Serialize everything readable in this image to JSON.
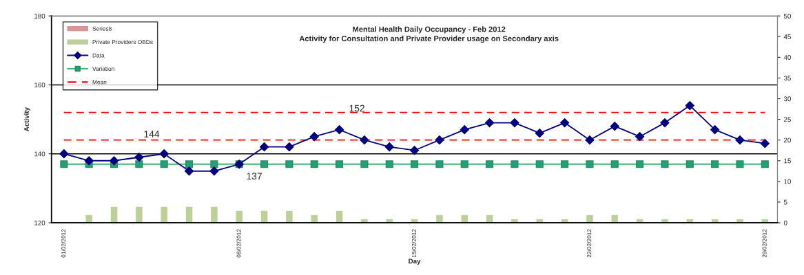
{
  "chart_data": {
    "type": "line",
    "title": "Mental Health Daily Occupancy - Feb 2012",
    "subtitle": "Activity for Consultation and Private Provider usage on Secondary axis",
    "xlabel": "Day",
    "ylabel": "Activity",
    "categories": [
      "01/02/2012",
      null,
      null,
      null,
      null,
      null,
      null,
      "08/02/2012",
      null,
      null,
      null,
      null,
      null,
      null,
      "15/02/2012",
      null,
      null,
      null,
      null,
      null,
      null,
      "22/02/2012",
      null,
      null,
      null,
      null,
      null,
      null,
      "29/02/2012"
    ],
    "series": [
      {
        "name": "Series8",
        "type": "bar",
        "axis": "y2",
        "color": "#d99594",
        "values": [
          null,
          null,
          null,
          null,
          null,
          null,
          null,
          null,
          null,
          null,
          null,
          null,
          null,
          null,
          null,
          null,
          null,
          null,
          null,
          null,
          null,
          null,
          null,
          null,
          null,
          null,
          null,
          null,
          null
        ]
      },
      {
        "name": "Private Providers OBDs",
        "type": "bar",
        "axis": "y2",
        "color": "#bcd098",
        "values": [
          null,
          2,
          4,
          4,
          4,
          4,
          4,
          3,
          3,
          3,
          2,
          3,
          1,
          1,
          1,
          2,
          2,
          2,
          1,
          1,
          1,
          2,
          2,
          1,
          1,
          1,
          1,
          1,
          1
        ]
      },
      {
        "name": "Data",
        "color": "#000080",
        "marker": "diamond",
        "values": [
          140,
          138,
          138,
          139,
          140,
          135,
          135,
          137,
          142,
          142,
          145,
          147,
          144,
          142,
          141,
          144,
          147,
          149,
          149,
          146,
          149,
          144,
          148,
          145,
          149,
          154,
          147,
          144,
          143
        ]
      },
      {
        "name": "Variation",
        "color": "#3cb371",
        "marker": "square",
        "values": [
          137,
          137,
          137,
          137,
          137,
          137,
          137,
          137,
          137,
          137,
          137,
          137,
          137,
          137,
          137,
          137,
          137,
          137,
          137,
          137,
          137,
          137,
          137,
          137,
          137,
          137,
          137,
          137,
          137
        ]
      },
      {
        "name": "Mean",
        "color": "#ff0000",
        "line_style": "dashed",
        "values": [
          152,
          152,
          152,
          152,
          152,
          152,
          152,
          152,
          152,
          152,
          152,
          152,
          152,
          152,
          152,
          152,
          152,
          152,
          152,
          152,
          152,
          152,
          152,
          152,
          152,
          152,
          152,
          152,
          152
        ]
      },
      {
        "color": "#ff0000",
        "line_style": "dashed",
        "values": [
          144,
          144,
          144,
          144,
          144,
          144,
          144,
          144,
          144,
          144,
          144,
          144,
          144,
          144,
          144,
          144,
          144,
          144,
          144,
          144,
          144,
          144,
          144,
          144,
          144,
          144,
          144,
          144,
          144
        ]
      }
    ],
    "annotations": [
      "144",
      "152",
      "137"
    ],
    "ylim": [
      120,
      180
    ],
    "yticks": [
      120,
      140,
      160,
      180
    ],
    "y2lim": [
      0,
      50
    ],
    "y2ticks": [
      0,
      5,
      10,
      15,
      20,
      25,
      30,
      35,
      40,
      45,
      50
    ],
    "grid": "y",
    "legend": "top left"
  }
}
